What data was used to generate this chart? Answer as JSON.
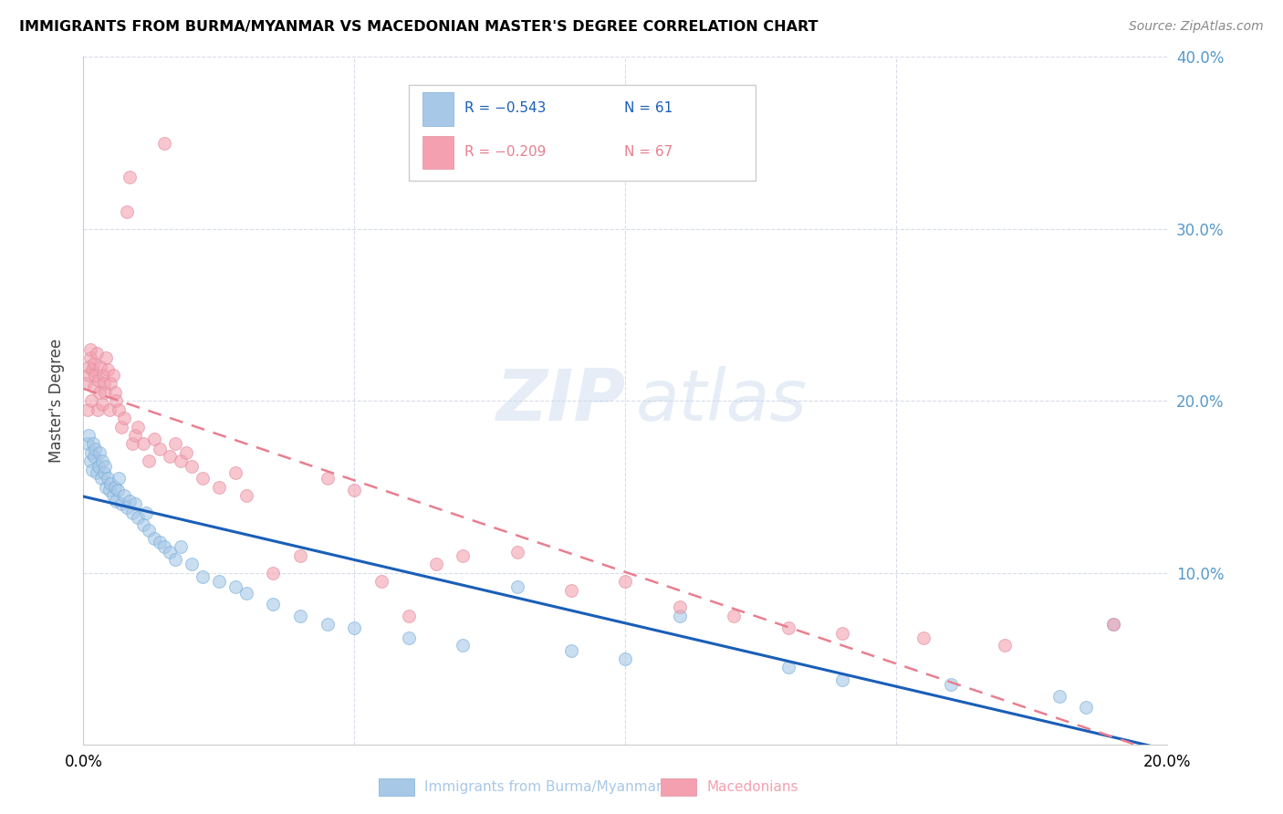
{
  "title": "IMMIGRANTS FROM BURMA/MYANMAR VS MACEDONIAN MASTER'S DEGREE CORRELATION CHART",
  "source": "Source: ZipAtlas.com",
  "ylabel": "Master's Degree",
  "xmin": 0.0,
  "xmax": 0.2,
  "ymin": 0.0,
  "ymax": 0.4,
  "yticks": [
    0.0,
    0.1,
    0.2,
    0.3,
    0.4
  ],
  "ytick_labels": [
    "",
    "10.0%",
    "20.0%",
    "30.0%",
    "40.0%"
  ],
  "xticks": [
    0.0,
    0.05,
    0.1,
    0.15,
    0.2
  ],
  "xtick_labels": [
    "0.0%",
    "",
    "",
    "",
    "20.0%"
  ],
  "legend_r1": "R = −0.543",
  "legend_n1": "N = 61",
  "legend_r2": "R = −0.209",
  "legend_n2": "N = 67",
  "legend_label1": "Immigrants from Burma/Myanmar",
  "legend_label2": "Macedonians",
  "color_blue": "#a8c8e8",
  "color_pink": "#f4a0b0",
  "color_line_blue": "#1a5eb8",
  "color_line_pink": "#e87f8f",
  "blue_scatter_x": [
    0.0008,
    0.001,
    0.0012,
    0.0014,
    0.0016,
    0.0018,
    0.002,
    0.0022,
    0.0025,
    0.0028,
    0.003,
    0.0033,
    0.0035,
    0.0038,
    0.004,
    0.0042,
    0.0045,
    0.0048,
    0.005,
    0.0055,
    0.0058,
    0.006,
    0.0063,
    0.0065,
    0.007,
    0.0075,
    0.008,
    0.0085,
    0.009,
    0.0095,
    0.01,
    0.011,
    0.0115,
    0.012,
    0.013,
    0.014,
    0.015,
    0.016,
    0.017,
    0.018,
    0.02,
    0.022,
    0.025,
    0.028,
    0.03,
    0.035,
    0.04,
    0.045,
    0.05,
    0.06,
    0.07,
    0.08,
    0.09,
    0.1,
    0.11,
    0.13,
    0.14,
    0.16,
    0.18,
    0.185,
    0.19
  ],
  "blue_scatter_y": [
    0.175,
    0.18,
    0.165,
    0.17,
    0.16,
    0.175,
    0.168,
    0.172,
    0.158,
    0.162,
    0.17,
    0.155,
    0.165,
    0.158,
    0.162,
    0.15,
    0.155,
    0.148,
    0.152,
    0.145,
    0.15,
    0.142,
    0.148,
    0.155,
    0.14,
    0.145,
    0.138,
    0.142,
    0.135,
    0.14,
    0.132,
    0.128,
    0.135,
    0.125,
    0.12,
    0.118,
    0.115,
    0.112,
    0.108,
    0.115,
    0.105,
    0.098,
    0.095,
    0.092,
    0.088,
    0.082,
    0.075,
    0.07,
    0.068,
    0.062,
    0.058,
    0.092,
    0.055,
    0.05,
    0.075,
    0.045,
    0.038,
    0.035,
    0.028,
    0.022,
    0.07
  ],
  "pink_scatter_x": [
    0.0005,
    0.0007,
    0.0009,
    0.001,
    0.0012,
    0.0013,
    0.0015,
    0.0017,
    0.0019,
    0.002,
    0.0022,
    0.0024,
    0.0026,
    0.0028,
    0.003,
    0.0032,
    0.0034,
    0.0036,
    0.0038,
    0.004,
    0.0042,
    0.0045,
    0.0048,
    0.005,
    0.0055,
    0.0058,
    0.006,
    0.0065,
    0.007,
    0.0075,
    0.008,
    0.0085,
    0.009,
    0.0095,
    0.01,
    0.011,
    0.012,
    0.013,
    0.014,
    0.015,
    0.016,
    0.017,
    0.018,
    0.019,
    0.02,
    0.022,
    0.025,
    0.028,
    0.03,
    0.035,
    0.04,
    0.045,
    0.05,
    0.055,
    0.06,
    0.065,
    0.07,
    0.08,
    0.09,
    0.1,
    0.11,
    0.12,
    0.13,
    0.14,
    0.155,
    0.17,
    0.19
  ],
  "pink_scatter_y": [
    0.21,
    0.195,
    0.22,
    0.215,
    0.225,
    0.23,
    0.2,
    0.218,
    0.222,
    0.208,
    0.215,
    0.228,
    0.195,
    0.212,
    0.205,
    0.22,
    0.198,
    0.215,
    0.21,
    0.205,
    0.225,
    0.218,
    0.195,
    0.21,
    0.215,
    0.205,
    0.2,
    0.195,
    0.185,
    0.19,
    0.31,
    0.33,
    0.175,
    0.18,
    0.185,
    0.175,
    0.165,
    0.178,
    0.172,
    0.35,
    0.168,
    0.175,
    0.165,
    0.17,
    0.162,
    0.155,
    0.15,
    0.158,
    0.145,
    0.1,
    0.11,
    0.155,
    0.148,
    0.095,
    0.075,
    0.105,
    0.11,
    0.112,
    0.09,
    0.095,
    0.08,
    0.075,
    0.068,
    0.065,
    0.062,
    0.058,
    0.07
  ]
}
